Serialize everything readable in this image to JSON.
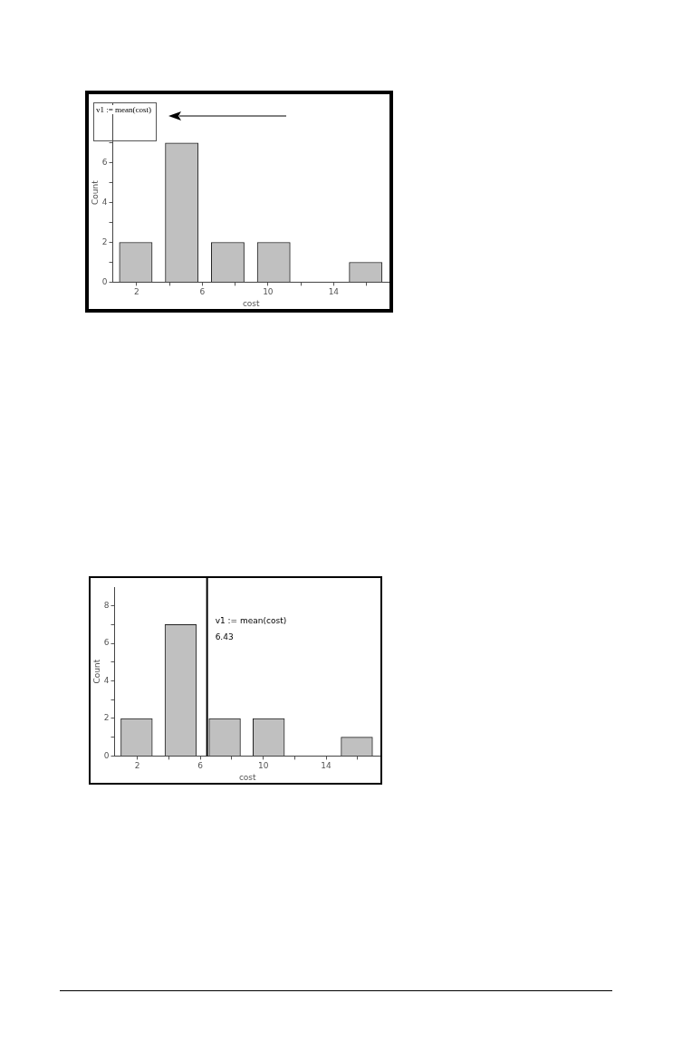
{
  "chart_data": [
    {
      "type": "histogram",
      "xlabel": "cost",
      "ylabel": "Count",
      "bins": [
        0.55,
        3.35,
        6.15,
        8.95,
        11.75,
        14.55,
        17.35
      ],
      "values": [
        2,
        7,
        2,
        2,
        0,
        1
      ],
      "color": "#c0c0c0",
      "xlim": [
        0.55,
        17.4
      ],
      "ylim": [
        0,
        9
      ],
      "xticks": [
        2,
        {
          "value": 4,
          "label": null
        },
        6,
        {
          "value": 8,
          "label": null
        },
        10,
        {
          "value": 12,
          "label": null
        },
        14,
        {
          "value": 16,
          "label": null
        }
      ],
      "yticks": [
        0,
        {
          "value": 1,
          "label": null
        },
        2,
        {
          "value": 3,
          "label": null
        },
        4,
        {
          "value": 5,
          "label": null
        },
        6,
        {
          "value": 7,
          "label": null
        }
      ],
      "annotations": [
        "v1 := mean(cost)"
      ]
    },
    {
      "type": "histogram",
      "xlabel": "cost",
      "ylabel": "Count",
      "bins": [
        0.55,
        3.35,
        6.15,
        8.95,
        11.75,
        14.55,
        17.35
      ],
      "values": [
        2,
        7,
        2,
        2,
        0,
        1
      ],
      "color": "#c0c0c0",
      "xlim": [
        0.55,
        17.45
      ],
      "ylim": [
        0,
        9
      ],
      "xticks": [
        2,
        {
          "value": 4,
          "label": null
        },
        6,
        {
          "value": 8,
          "label": null
        },
        10,
        {
          "value": 12,
          "label": null
        },
        14,
        {
          "value": 16,
          "label": null
        }
      ],
      "yticks": [
        0,
        {
          "value": 1,
          "label": null
        },
        2,
        {
          "value": 3,
          "label": null
        },
        4,
        {
          "value": 5,
          "label": null
        },
        6,
        {
          "value": 7,
          "label": null
        },
        8
      ],
      "ref_lines": [
        {
          "axis": "x",
          "value": 6.43,
          "label": "v1 := mean(cost)"
        }
      ],
      "annotations": [
        {
          "text": "6.43",
          "x": 6.43,
          "y": 6.3
        }
      ]
    }
  ]
}
